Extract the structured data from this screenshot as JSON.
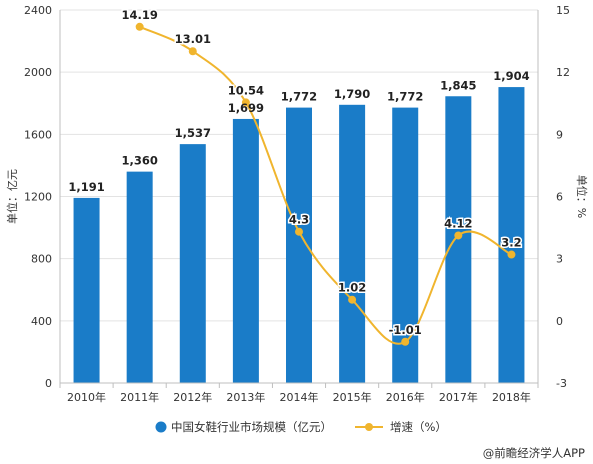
{
  "chart_data": {
    "type": "bar",
    "categories": [
      "2010年",
      "2011年",
      "2012年",
      "2013年",
      "2014年",
      "2015年",
      "2016年",
      "2017年",
      "2018年"
    ],
    "series": [
      {
        "name": "中国女鞋行业市场规模（亿元）",
        "type": "bar",
        "axis": "left",
        "values": [
          1191,
          1360,
          1537,
          1699,
          1772,
          1790,
          1772,
          1845,
          1904
        ],
        "labels": [
          "1,191",
          "1,360",
          "1,537",
          "1,699",
          "1,772",
          "1,790",
          "1,772",
          "1,845",
          "1,904"
        ],
        "color": "#1a7cc8"
      },
      {
        "name": "增速（%）",
        "type": "line",
        "axis": "right",
        "values": [
          null,
          14.19,
          13.01,
          10.54,
          4.3,
          1.02,
          -1.01,
          4.12,
          3.2
        ],
        "labels": [
          "",
          "14.19",
          "13.01",
          "10.54",
          "4.3",
          "1.02",
          "-1.01",
          "4.12",
          "3.2"
        ],
        "color": "#f0b52e"
      }
    ],
    "y_left": {
      "label": "单位：亿元",
      "range": [
        0,
        2400
      ],
      "ticks": [
        "0",
        "400",
        "800",
        "1200",
        "1600",
        "2000",
        "2400"
      ]
    },
    "y_right": {
      "label": "单位：%",
      "range": [
        -3,
        15
      ],
      "ticks": [
        "-3",
        "0",
        "3",
        "6",
        "9",
        "12",
        "15"
      ]
    },
    "grid": true,
    "legend_position": "bottom"
  },
  "footer": {
    "source": "@前瞻经济学人APP"
  }
}
